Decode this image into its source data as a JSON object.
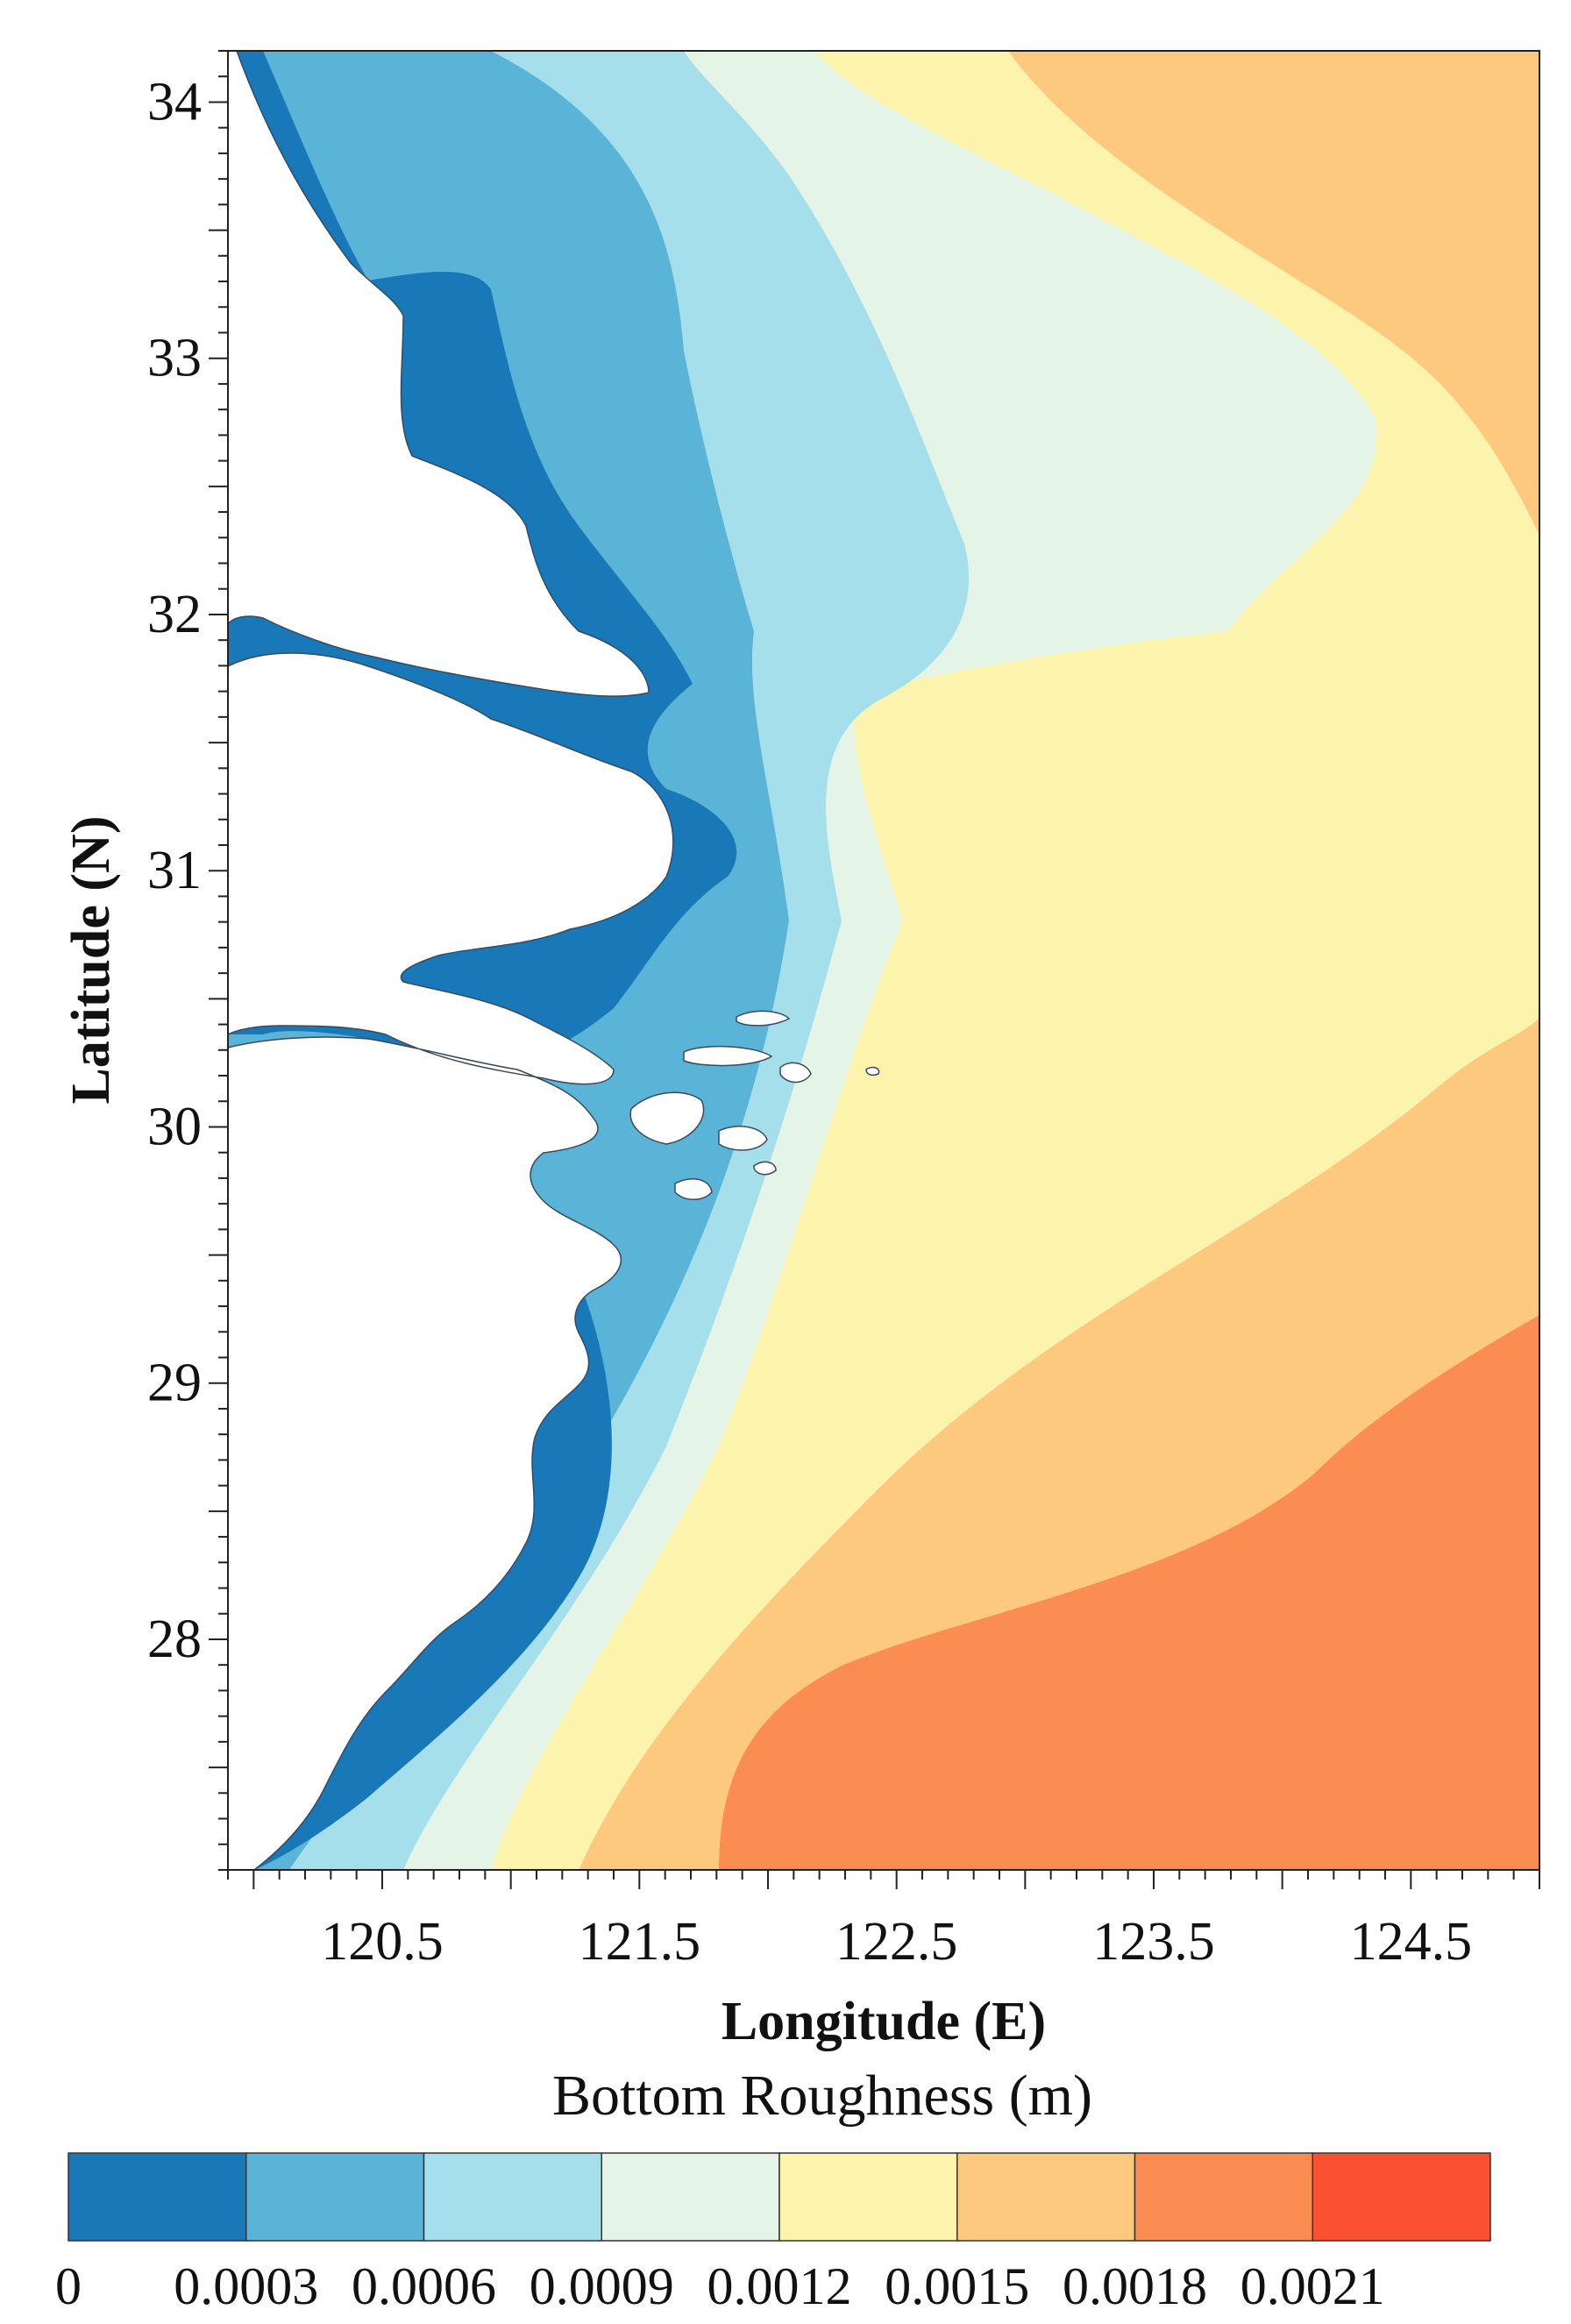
{
  "chart_data": {
    "type": "heatmap",
    "title": "Bottom Roughness (m)",
    "xlabel": "Longitude (E)",
    "ylabel": "Latitude (N)",
    "xlim": [
      119.9,
      125.0
    ],
    "ylim": [
      27.1,
      34.2
    ],
    "x_ticks": [
      "120.5",
      "121.5",
      "122.5",
      "123.5",
      "124.5"
    ],
    "y_ticks": [
      "28",
      "29",
      "30",
      "31",
      "32",
      "33",
      "34"
    ],
    "x_tick_values": [
      120.5,
      121.5,
      122.5,
      123.5,
      124.5
    ],
    "y_tick_values": [
      28,
      29,
      30,
      31,
      32,
      33,
      34
    ],
    "colorbar": {
      "labels": [
        "0",
        "0.0003",
        "0.0006",
        "0.0009",
        "0.0012",
        "0.0015",
        "0.0018",
        "0.0021"
      ],
      "bins": [
        {
          "min": 0,
          "max": 0.0003,
          "color": "#1878b8"
        },
        {
          "min": 0.0003,
          "max": 0.0006,
          "color": "#5ab4d8"
        },
        {
          "min": 0.0006,
          "max": 0.0009,
          "color": "#a6dfec"
        },
        {
          "min": 0.0009,
          "max": 0.0012,
          "color": "#e4f4e6"
        },
        {
          "min": 0.0012,
          "max": 0.0015,
          "color": "#fcf3ac"
        },
        {
          "min": 0.0015,
          "max": 0.0018,
          "color": "#fcc97e"
        },
        {
          "min": 0.0018,
          "max": 0.0021,
          "color": "#fc8d52"
        },
        {
          "min": 0.0021,
          "max": 0.0024,
          "color": "#fc5032"
        }
      ]
    },
    "land_color": "#ffffff",
    "grid": false
  }
}
